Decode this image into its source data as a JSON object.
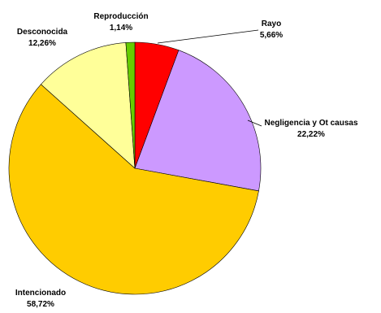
{
  "chart_data": {
    "type": "pie",
    "title": "",
    "slices": [
      {
        "label": "Rayo",
        "value_text": "5,66%",
        "value": 5.66,
        "color": "#ff0000"
      },
      {
        "label": "Negligencia y Ot causas",
        "value_text": "22,22%",
        "value": 22.22,
        "color": "#cc99ff"
      },
      {
        "label": "Intencionado",
        "value_text": "58,72%",
        "value": 58.72,
        "color": "#ffcc00"
      },
      {
        "label": "Desconocida",
        "value_text": "12,26%",
        "value": 12.26,
        "color": "#ffff99"
      },
      {
        "label": "Reproducción",
        "value_text": "1,14%",
        "value": 1.14,
        "color": "#66cc00"
      }
    ]
  }
}
